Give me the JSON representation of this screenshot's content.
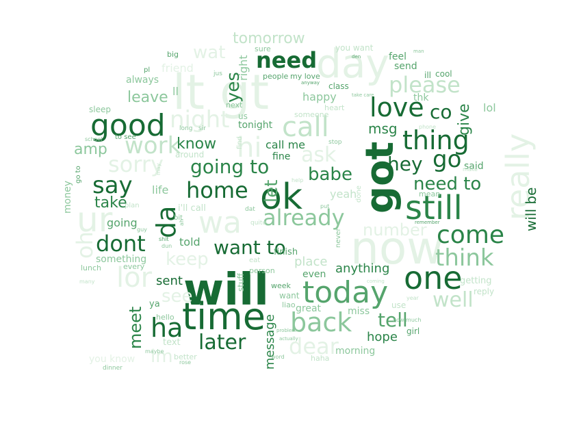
{
  "title": "word cloud",
  "colors": {
    "c1": "#176b34",
    "c2": "#2a8448",
    "c3": "#55a46c",
    "c4": "#8cc79c",
    "c5": "#c2e3c9",
    "c6": "#e3f2e5"
  },
  "words": [
    {
      "text": "will"
    },
    {
      "text": "time"
    },
    {
      "text": "ok"
    },
    {
      "text": "got"
    },
    {
      "text": "now"
    },
    {
      "text": "lt gt"
    },
    {
      "text": "day"
    },
    {
      "text": "good"
    },
    {
      "text": "still"
    },
    {
      "text": "one"
    },
    {
      "text": "today"
    },
    {
      "text": "wa"
    },
    {
      "text": "ur"
    },
    {
      "text": "call"
    },
    {
      "text": "love"
    },
    {
      "text": "thing"
    },
    {
      "text": "home"
    },
    {
      "text": "back"
    },
    {
      "text": "come"
    },
    {
      "text": "say"
    },
    {
      "text": "da"
    },
    {
      "text": "ha"
    },
    {
      "text": "dont"
    },
    {
      "text": "think"
    },
    {
      "text": "really"
    },
    {
      "text": "need"
    },
    {
      "text": "going to"
    },
    {
      "text": "already"
    },
    {
      "text": "hi"
    },
    {
      "text": "work"
    },
    {
      "text": "sorry"
    },
    {
      "text": "night"
    },
    {
      "text": "please"
    },
    {
      "text": "want to"
    },
    {
      "text": "later"
    },
    {
      "text": "tell"
    },
    {
      "text": "well"
    },
    {
      "text": "dear"
    },
    {
      "text": "go"
    },
    {
      "text": "hey"
    },
    {
      "text": "need to"
    },
    {
      "text": "give"
    },
    {
      "text": "co"
    },
    {
      "text": "babe"
    },
    {
      "text": "ask"
    },
    {
      "text": "keep"
    },
    {
      "text": "lor"
    },
    {
      "text": "oh"
    },
    {
      "text": "meet"
    },
    {
      "text": "see"
    },
    {
      "text": "take"
    },
    {
      "text": "know"
    },
    {
      "text": "let"
    },
    {
      "text": "yes"
    },
    {
      "text": "wat"
    },
    {
      "text": "amp"
    },
    {
      "text": "leave"
    },
    {
      "text": "tomorrow"
    },
    {
      "text": "msg"
    },
    {
      "text": "number"
    },
    {
      "text": "anything"
    },
    {
      "text": "hope"
    },
    {
      "text": "message"
    },
    {
      "text": "will be"
    },
    {
      "text": "sent"
    },
    {
      "text": "im"
    },
    {
      "text": "friend"
    },
    {
      "text": "right"
    },
    {
      "text": "happy"
    },
    {
      "text": "call me"
    },
    {
      "text": "life"
    },
    {
      "text": "going"
    },
    {
      "text": "told"
    },
    {
      "text": "ll"
    },
    {
      "text": "tonight"
    },
    {
      "text": "fine"
    },
    {
      "text": "yeah"
    },
    {
      "text": "place"
    },
    {
      "text": "even"
    },
    {
      "text": "great"
    },
    {
      "text": "miss"
    },
    {
      "text": "morning"
    },
    {
      "text": "said"
    },
    {
      "text": "lol"
    },
    {
      "text": "thk"
    },
    {
      "text": "always"
    },
    {
      "text": "feel"
    },
    {
      "text": "send"
    },
    {
      "text": "class"
    },
    {
      "text": "people"
    },
    {
      "text": "my love"
    },
    {
      "text": "sure"
    },
    {
      "text": "you want"
    },
    {
      "text": "big"
    },
    {
      "text": "pl"
    },
    {
      "text": "ill"
    },
    {
      "text": "cool"
    },
    {
      "text": "money"
    },
    {
      "text": "something"
    },
    {
      "text": "lunch"
    },
    {
      "text": "every"
    },
    {
      "text": "ya"
    },
    {
      "text": "hello"
    },
    {
      "text": "text"
    },
    {
      "text": "you know"
    },
    {
      "text": "better"
    },
    {
      "text": "dinner"
    },
    {
      "text": "maybe"
    },
    {
      "text": "week"
    },
    {
      "text": "want"
    },
    {
      "text": "liao"
    },
    {
      "text": "finish"
    },
    {
      "text": "eat"
    },
    {
      "text": "person"
    },
    {
      "text": "stuff"
    },
    {
      "text": "getting"
    },
    {
      "text": "reply"
    },
    {
      "text": "girl"
    },
    {
      "text": "use"
    },
    {
      "text": "haha"
    },
    {
      "text": "word"
    },
    {
      "text": "problem"
    },
    {
      "text": "actually"
    },
    {
      "text": "how much"
    },
    {
      "text": "mean"
    },
    {
      "text": "next"
    },
    {
      "text": "heart"
    },
    {
      "text": "someone"
    },
    {
      "text": "stop"
    },
    {
      "text": "sleep"
    },
    {
      "text": "to see"
    },
    {
      "text": "school"
    },
    {
      "text": "around"
    },
    {
      "text": "find"
    },
    {
      "text": "long"
    },
    {
      "text": "sir"
    },
    {
      "text": "us"
    },
    {
      "text": "may"
    },
    {
      "text": "go to"
    },
    {
      "text": "plan"
    },
    {
      "text": "i'll call"
    },
    {
      "text": "dat"
    },
    {
      "text": "bit"
    },
    {
      "text": "guy"
    },
    {
      "text": "shit"
    },
    {
      "text": "dun"
    },
    {
      "text": "ah"
    },
    {
      "text": "quite"
    },
    {
      "text": "never"
    },
    {
      "text": "done"
    },
    {
      "text": "put"
    },
    {
      "text": "remember"
    },
    {
      "text": "help"
    },
    {
      "text": "den"
    },
    {
      "text": "man"
    },
    {
      "text": "anyway"
    },
    {
      "text": "take care"
    },
    {
      "text": "jus"
    },
    {
      "text": "many"
    },
    {
      "text": "make"
    },
    {
      "text": "year"
    },
    {
      "text": "coming"
    },
    {
      "text": "phone"
    },
    {
      "text": "rose"
    }
  ]
}
